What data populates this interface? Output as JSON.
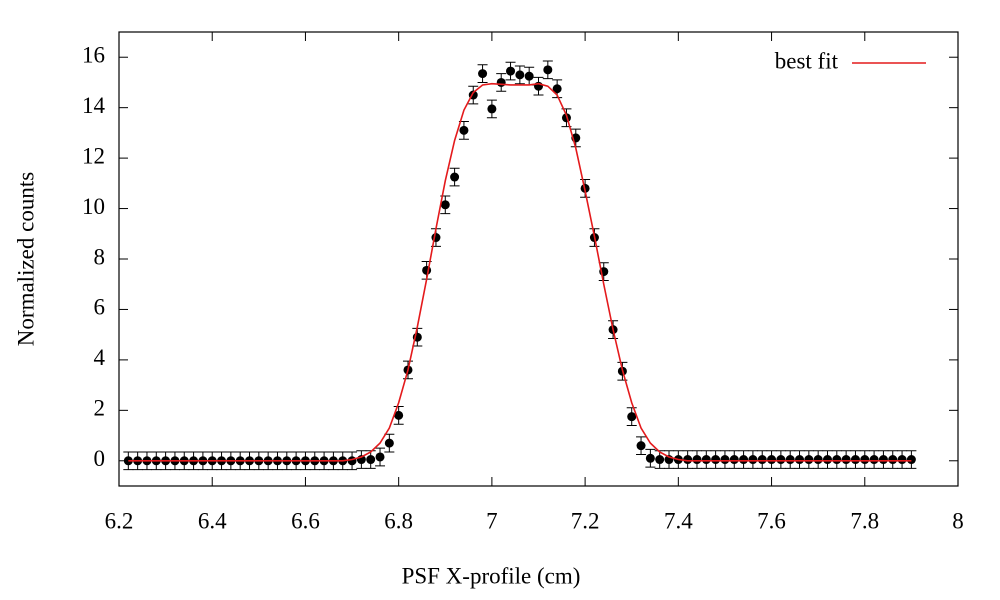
{
  "chart_data": {
    "type": "scatter",
    "xlabel": "PSF X-profile (cm)",
    "ylabel": "Normalized counts",
    "xlim": [
      6.2,
      8
    ],
    "ylim": [
      -1,
      17
    ],
    "xticks": [
      6.2,
      6.4,
      6.6,
      6.8,
      7,
      7.2,
      7.4,
      7.6,
      7.8,
      8
    ],
    "yticks": [
      0,
      2,
      4,
      6,
      8,
      10,
      12,
      14,
      16
    ],
    "legend": "upper right",
    "series": [
      {
        "color": "#000000",
        "x": [
          6.22,
          6.24,
          6.26,
          6.28,
          6.3,
          6.32,
          6.34,
          6.36,
          6.38,
          6.4,
          6.42,
          6.44,
          6.46,
          6.48,
          6.5,
          6.52,
          6.54,
          6.56,
          6.58,
          6.6,
          6.62,
          6.64,
          6.66,
          6.68,
          6.7,
          6.72,
          6.74,
          6.76,
          6.78,
          6.8,
          6.82,
          6.84,
          6.86,
          6.88,
          6.9,
          6.92,
          6.94,
          6.96,
          6.98,
          7,
          7.02,
          7.04,
          7.06,
          7.08,
          7.1,
          7.12,
          7.14,
          7.16,
          7.18,
          7.2,
          7.22,
          7.24,
          7.26,
          7.28,
          7.3,
          7.32,
          7.34,
          7.36,
          7.38,
          7.4,
          7.42,
          7.44,
          7.46,
          7.48,
          7.5,
          7.52,
          7.54,
          7.56,
          7.58,
          7.6,
          7.62,
          7.64,
          7.66,
          7.68,
          7.7,
          7.72,
          7.74,
          7.76,
          7.78,
          7.8,
          7.82,
          7.84,
          7.86,
          7.88,
          7.9
        ],
        "values": [
          0,
          0,
          0,
          0,
          0,
          0,
          0,
          0,
          0,
          0,
          0,
          0,
          0,
          0,
          0,
          0,
          0,
          0,
          0,
          0,
          0,
          0,
          0,
          0,
          0,
          0.05,
          0.05,
          0.15,
          0.7,
          1.8,
          3.6,
          4.9,
          7.55,
          8.85,
          10.15,
          11.25,
          13.1,
          14.5,
          15.35,
          13.95,
          15.0,
          15.45,
          15.3,
          15.25,
          14.85,
          15.5,
          14.75,
          13.6,
          12.8,
          10.8,
          8.85,
          7.5,
          5.2,
          3.55,
          1.75,
          0.6,
          0.1,
          0.05,
          0.05,
          0.05,
          0.05,
          0.05,
          0.05,
          0.05,
          0.05,
          0.05,
          0.05,
          0.05,
          0.05,
          0.05,
          0.05,
          0.05,
          0.05,
          0.05,
          0.05,
          0.05,
          0.05,
          0.05,
          0.05,
          0.05,
          0.05,
          0.05,
          0.05,
          0.05,
          0.05
        ],
        "errors": [
          0.35,
          0.35,
          0.35,
          0.35,
          0.35,
          0.35,
          0.35,
          0.35,
          0.35,
          0.35,
          0.35,
          0.35,
          0.35,
          0.35,
          0.35,
          0.35,
          0.35,
          0.35,
          0.35,
          0.35,
          0.35,
          0.35,
          0.35,
          0.35,
          0.35,
          0.35,
          0.35,
          0.35,
          0.35,
          0.35,
          0.35,
          0.35,
          0.35,
          0.35,
          0.35,
          0.35,
          0.35,
          0.35,
          0.35,
          0.35,
          0.35,
          0.35,
          0.35,
          0.35,
          0.35,
          0.35,
          0.35,
          0.35,
          0.35,
          0.35,
          0.35,
          0.35,
          0.35,
          0.35,
          0.35,
          0.35,
          0.35,
          0.35,
          0.35,
          0.35,
          0.35,
          0.35,
          0.35,
          0.35,
          0.35,
          0.35,
          0.35,
          0.35,
          0.35,
          0.35,
          0.35,
          0.35,
          0.35,
          0.35,
          0.35,
          0.35,
          0.35,
          0.35,
          0.35,
          0.35,
          0.35,
          0.35,
          0.35,
          0.35,
          0.35
        ]
      },
      {
        "name": "best fit",
        "color": "#e41a1c",
        "line": true,
        "x": [
          6.22,
          6.6,
          6.68,
          6.7,
          6.72,
          6.74,
          6.76,
          6.78,
          6.8,
          6.82,
          6.84,
          6.86,
          6.88,
          6.9,
          6.92,
          6.94,
          6.96,
          6.98,
          7,
          7.04,
          7.08,
          7.1,
          7.12,
          7.14,
          7.16,
          7.18,
          7.2,
          7.22,
          7.24,
          7.26,
          7.28,
          7.3,
          7.32,
          7.34,
          7.36,
          7.38,
          7.4,
          7.42,
          7.5,
          7.9
        ],
        "values": [
          0,
          0,
          0,
          0.05,
          0.15,
          0.35,
          0.7,
          1.3,
          2.3,
          3.6,
          5.3,
          7.2,
          9.2,
          11.1,
          12.7,
          13.9,
          14.6,
          14.9,
          14.95,
          14.9,
          14.9,
          14.95,
          14.85,
          14.5,
          13.7,
          12.4,
          10.7,
          8.9,
          7.0,
          5.2,
          3.6,
          2.3,
          1.3,
          0.7,
          0.35,
          0.15,
          0.05,
          0,
          0,
          0
        ]
      }
    ]
  }
}
